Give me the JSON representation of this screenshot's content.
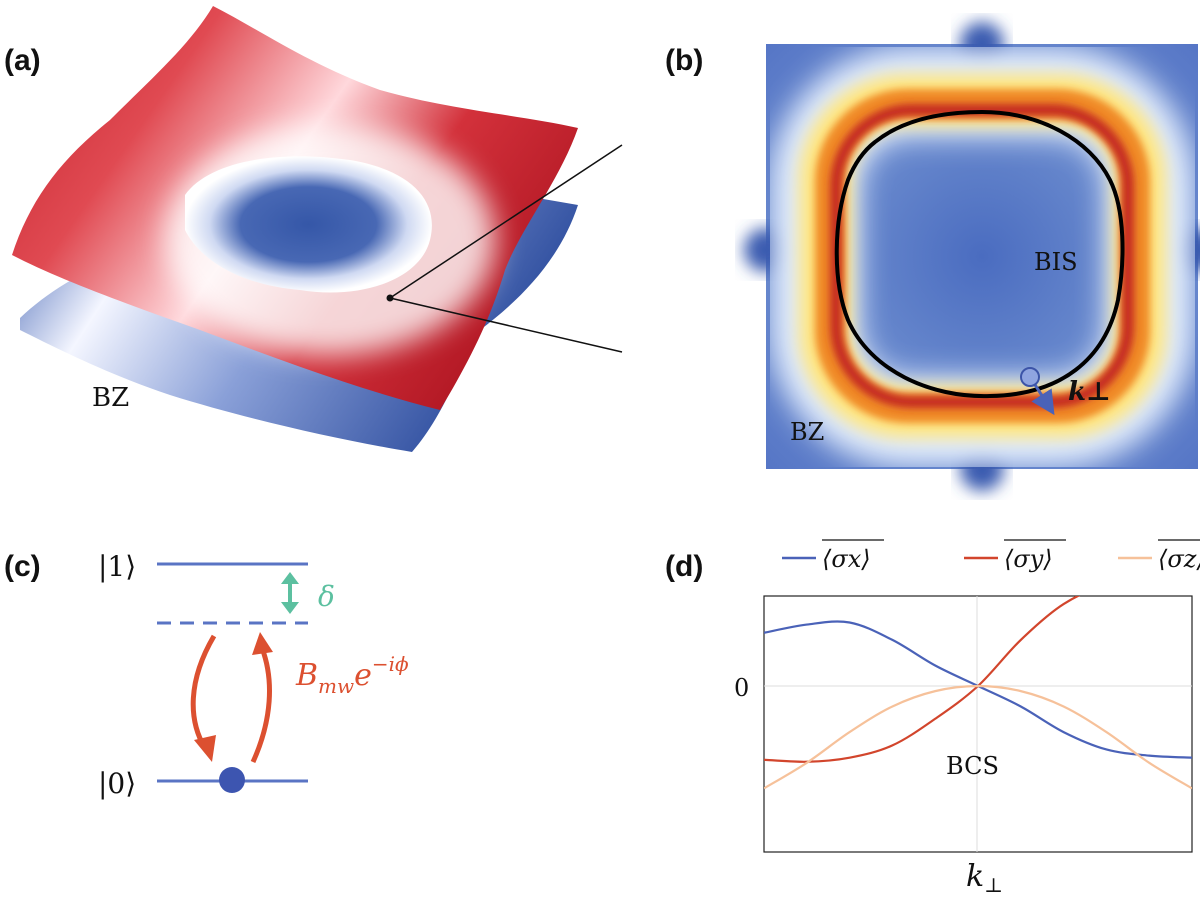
{
  "panels": {
    "a": {
      "label": "(a)",
      "bz_label": "BZ"
    },
    "b": {
      "label": "(b)",
      "bis_label": "BIS",
      "bz_label": "BZ",
      "k_perp_label": "k⊥"
    },
    "c": {
      "label": "(c)",
      "state_1": "|1⟩",
      "state_0": "|0⟩",
      "delta_label": "δ",
      "drive_label": "B",
      "drive_sub": "mw",
      "drive_exp_base": "e",
      "drive_exp": "−iϕ"
    },
    "d": {
      "label": "(d)",
      "zero_tick": "0",
      "bcs_label": "BCS",
      "xlabel_k": "k",
      "xlabel_sub": "⊥"
    }
  },
  "colors": {
    "sx": "#4a62b8",
    "sy": "#d2452c",
    "sz": "#f6c19a",
    "level": "#5a74c4",
    "delta": "#5cc0a0",
    "drive": "#dc5030",
    "red_surface": "#c8202a",
    "blue_surface": "#2b4fa0"
  },
  "chart_data": {
    "type": "line",
    "title": "",
    "xlabel": "k⊥",
    "ylabel": "",
    "x_ticks": [
      "k⊥"
    ],
    "y_ticks": [
      "0"
    ],
    "legend_position": "top",
    "x": [
      -1.0,
      -0.8,
      -0.6,
      -0.4,
      -0.2,
      0.0,
      0.2,
      0.4,
      0.6,
      0.8,
      1.0
    ],
    "ylim": [
      -1.0,
      1.0
    ],
    "series": [
      {
        "name": "⟨σx⟩",
        "color": "#4a62b8",
        "values": [
          0.52,
          0.6,
          0.62,
          0.45,
          0.2,
          0.0,
          -0.2,
          -0.45,
          -0.62,
          -0.68,
          -0.7
        ]
      },
      {
        "name": "⟨σy⟩",
        "color": "#d2452c",
        "values": [
          -0.72,
          -0.74,
          -0.7,
          -0.58,
          -0.32,
          0.0,
          0.45,
          0.8,
          0.98,
          0.98,
          0.9
        ]
      },
      {
        "name": "⟨σz⟩",
        "color": "#f6c19a",
        "values": [
          -1.0,
          -0.75,
          -0.45,
          -0.2,
          -0.05,
          0.0,
          -0.05,
          -0.2,
          -0.45,
          -0.75,
          -1.0
        ]
      }
    ]
  }
}
